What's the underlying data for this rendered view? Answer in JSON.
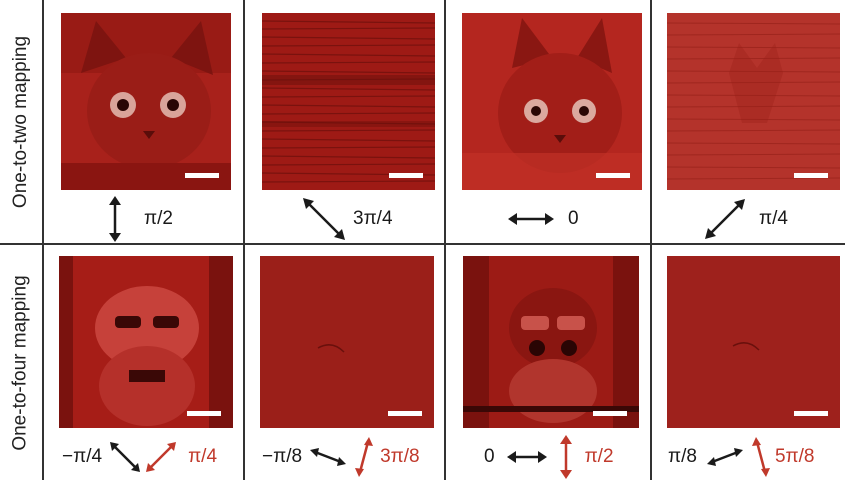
{
  "row_labels": {
    "top": "One-to-two mapping",
    "bottom": "One-to-four mapping"
  },
  "top_row": {
    "captions": [
      "π/2",
      "3π/4",
      "0",
      "π/4"
    ]
  },
  "bottom_row": {
    "captions": [
      {
        "black": "−π/4",
        "red": "π/4"
      },
      {
        "black": "−π/8",
        "red": "3π/8"
      },
      {
        "black": "0",
        "red": "π/2"
      },
      {
        "black": "π/8",
        "red": "5π/8"
      }
    ]
  },
  "colors": {
    "image_red": "#a31612",
    "arrow_black": "#1a1a1a",
    "arrow_red": "#c0392b"
  }
}
